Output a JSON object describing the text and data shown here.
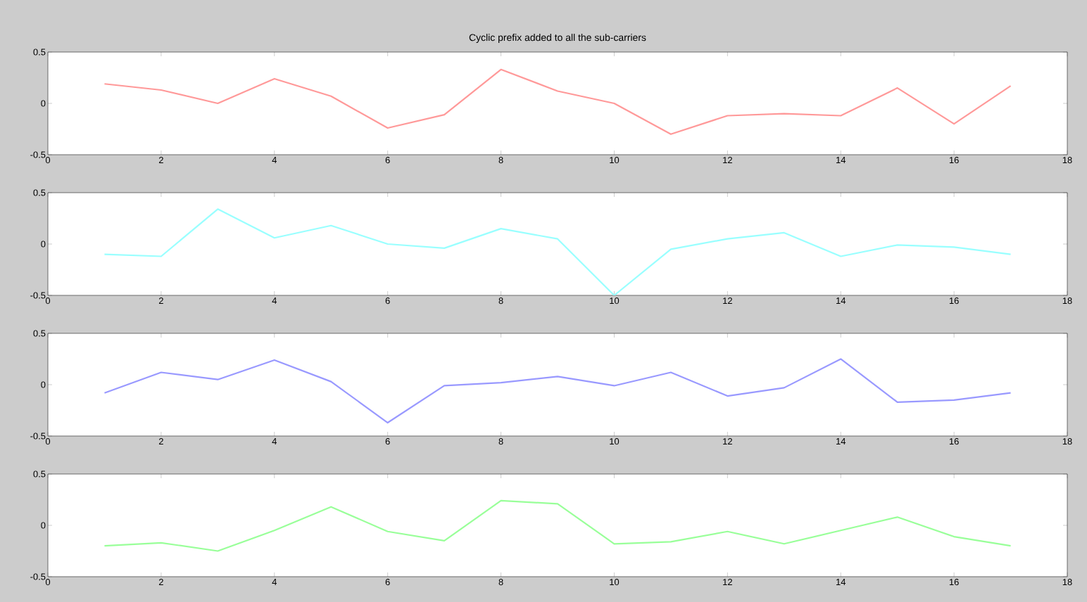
{
  "chart_data": [
    {
      "type": "line",
      "title": "Cyclic prefix added to all the sub-carriers",
      "x": [
        1,
        2,
        3,
        4,
        5,
        6,
        7,
        8,
        9,
        10,
        11,
        12,
        13,
        14,
        15,
        16,
        17
      ],
      "xlim": [
        0,
        18
      ],
      "xticks": [
        0,
        2,
        4,
        6,
        8,
        10,
        12,
        14,
        16,
        18
      ],
      "ylim": [
        -0.5,
        0.5
      ],
      "yticks": [
        -0.5,
        0,
        0.5
      ],
      "series": [
        {
          "color": "#ff9999",
          "values": [
            0.19,
            0.13,
            0.0,
            0.24,
            0.07,
            -0.24,
            -0.11,
            0.33,
            0.12,
            0.0,
            -0.3,
            -0.12,
            -0.1,
            -0.12,
            0.15,
            -0.2,
            0.17
          ]
        }
      ]
    },
    {
      "type": "line",
      "x": [
        1,
        2,
        3,
        4,
        5,
        6,
        7,
        8,
        9,
        10,
        11,
        12,
        13,
        14,
        15,
        16,
        17
      ],
      "xlim": [
        0,
        18
      ],
      "xticks": [
        0,
        2,
        4,
        6,
        8,
        10,
        12,
        14,
        16,
        18
      ],
      "ylim": [
        -0.5,
        0.5
      ],
      "yticks": [
        -0.5,
        0,
        0.5
      ],
      "series": [
        {
          "color": "#99ffff",
          "values": [
            -0.1,
            -0.12,
            0.34,
            0.06,
            0.18,
            0.0,
            -0.04,
            0.15,
            0.05,
            -0.5,
            -0.05,
            0.05,
            0.11,
            -0.12,
            -0.01,
            -0.03,
            -0.1
          ]
        }
      ]
    },
    {
      "type": "line",
      "x": [
        1,
        2,
        3,
        4,
        5,
        6,
        7,
        8,
        9,
        10,
        11,
        12,
        13,
        14,
        15,
        16,
        17
      ],
      "xlim": [
        0,
        18
      ],
      "xticks": [
        0,
        2,
        4,
        6,
        8,
        10,
        12,
        14,
        16,
        18
      ],
      "ylim": [
        -0.5,
        0.5
      ],
      "yticks": [
        -0.5,
        0,
        0.5
      ],
      "series": [
        {
          "color": "#9999ff",
          "values": [
            -0.08,
            0.12,
            0.05,
            0.24,
            0.03,
            -0.37,
            -0.01,
            0.02,
            0.08,
            -0.01,
            0.12,
            -0.11,
            -0.03,
            0.25,
            -0.17,
            -0.15,
            -0.08
          ]
        }
      ]
    },
    {
      "type": "line",
      "x": [
        1,
        2,
        3,
        4,
        5,
        6,
        7,
        8,
        9,
        10,
        11,
        12,
        13,
        14,
        15,
        16,
        17
      ],
      "xlim": [
        0,
        18
      ],
      "xticks": [
        0,
        2,
        4,
        6,
        8,
        10,
        12,
        14,
        16,
        18
      ],
      "ylim": [
        -0.5,
        0.5
      ],
      "yticks": [
        -0.5,
        0,
        0.5
      ],
      "series": [
        {
          "color": "#99ff99",
          "values": [
            -0.2,
            -0.17,
            -0.25,
            -0.05,
            0.18,
            -0.06,
            -0.15,
            0.24,
            0.21,
            -0.18,
            -0.16,
            -0.06,
            -0.18,
            -0.05,
            0.08,
            -0.11,
            -0.2
          ]
        }
      ]
    }
  ]
}
